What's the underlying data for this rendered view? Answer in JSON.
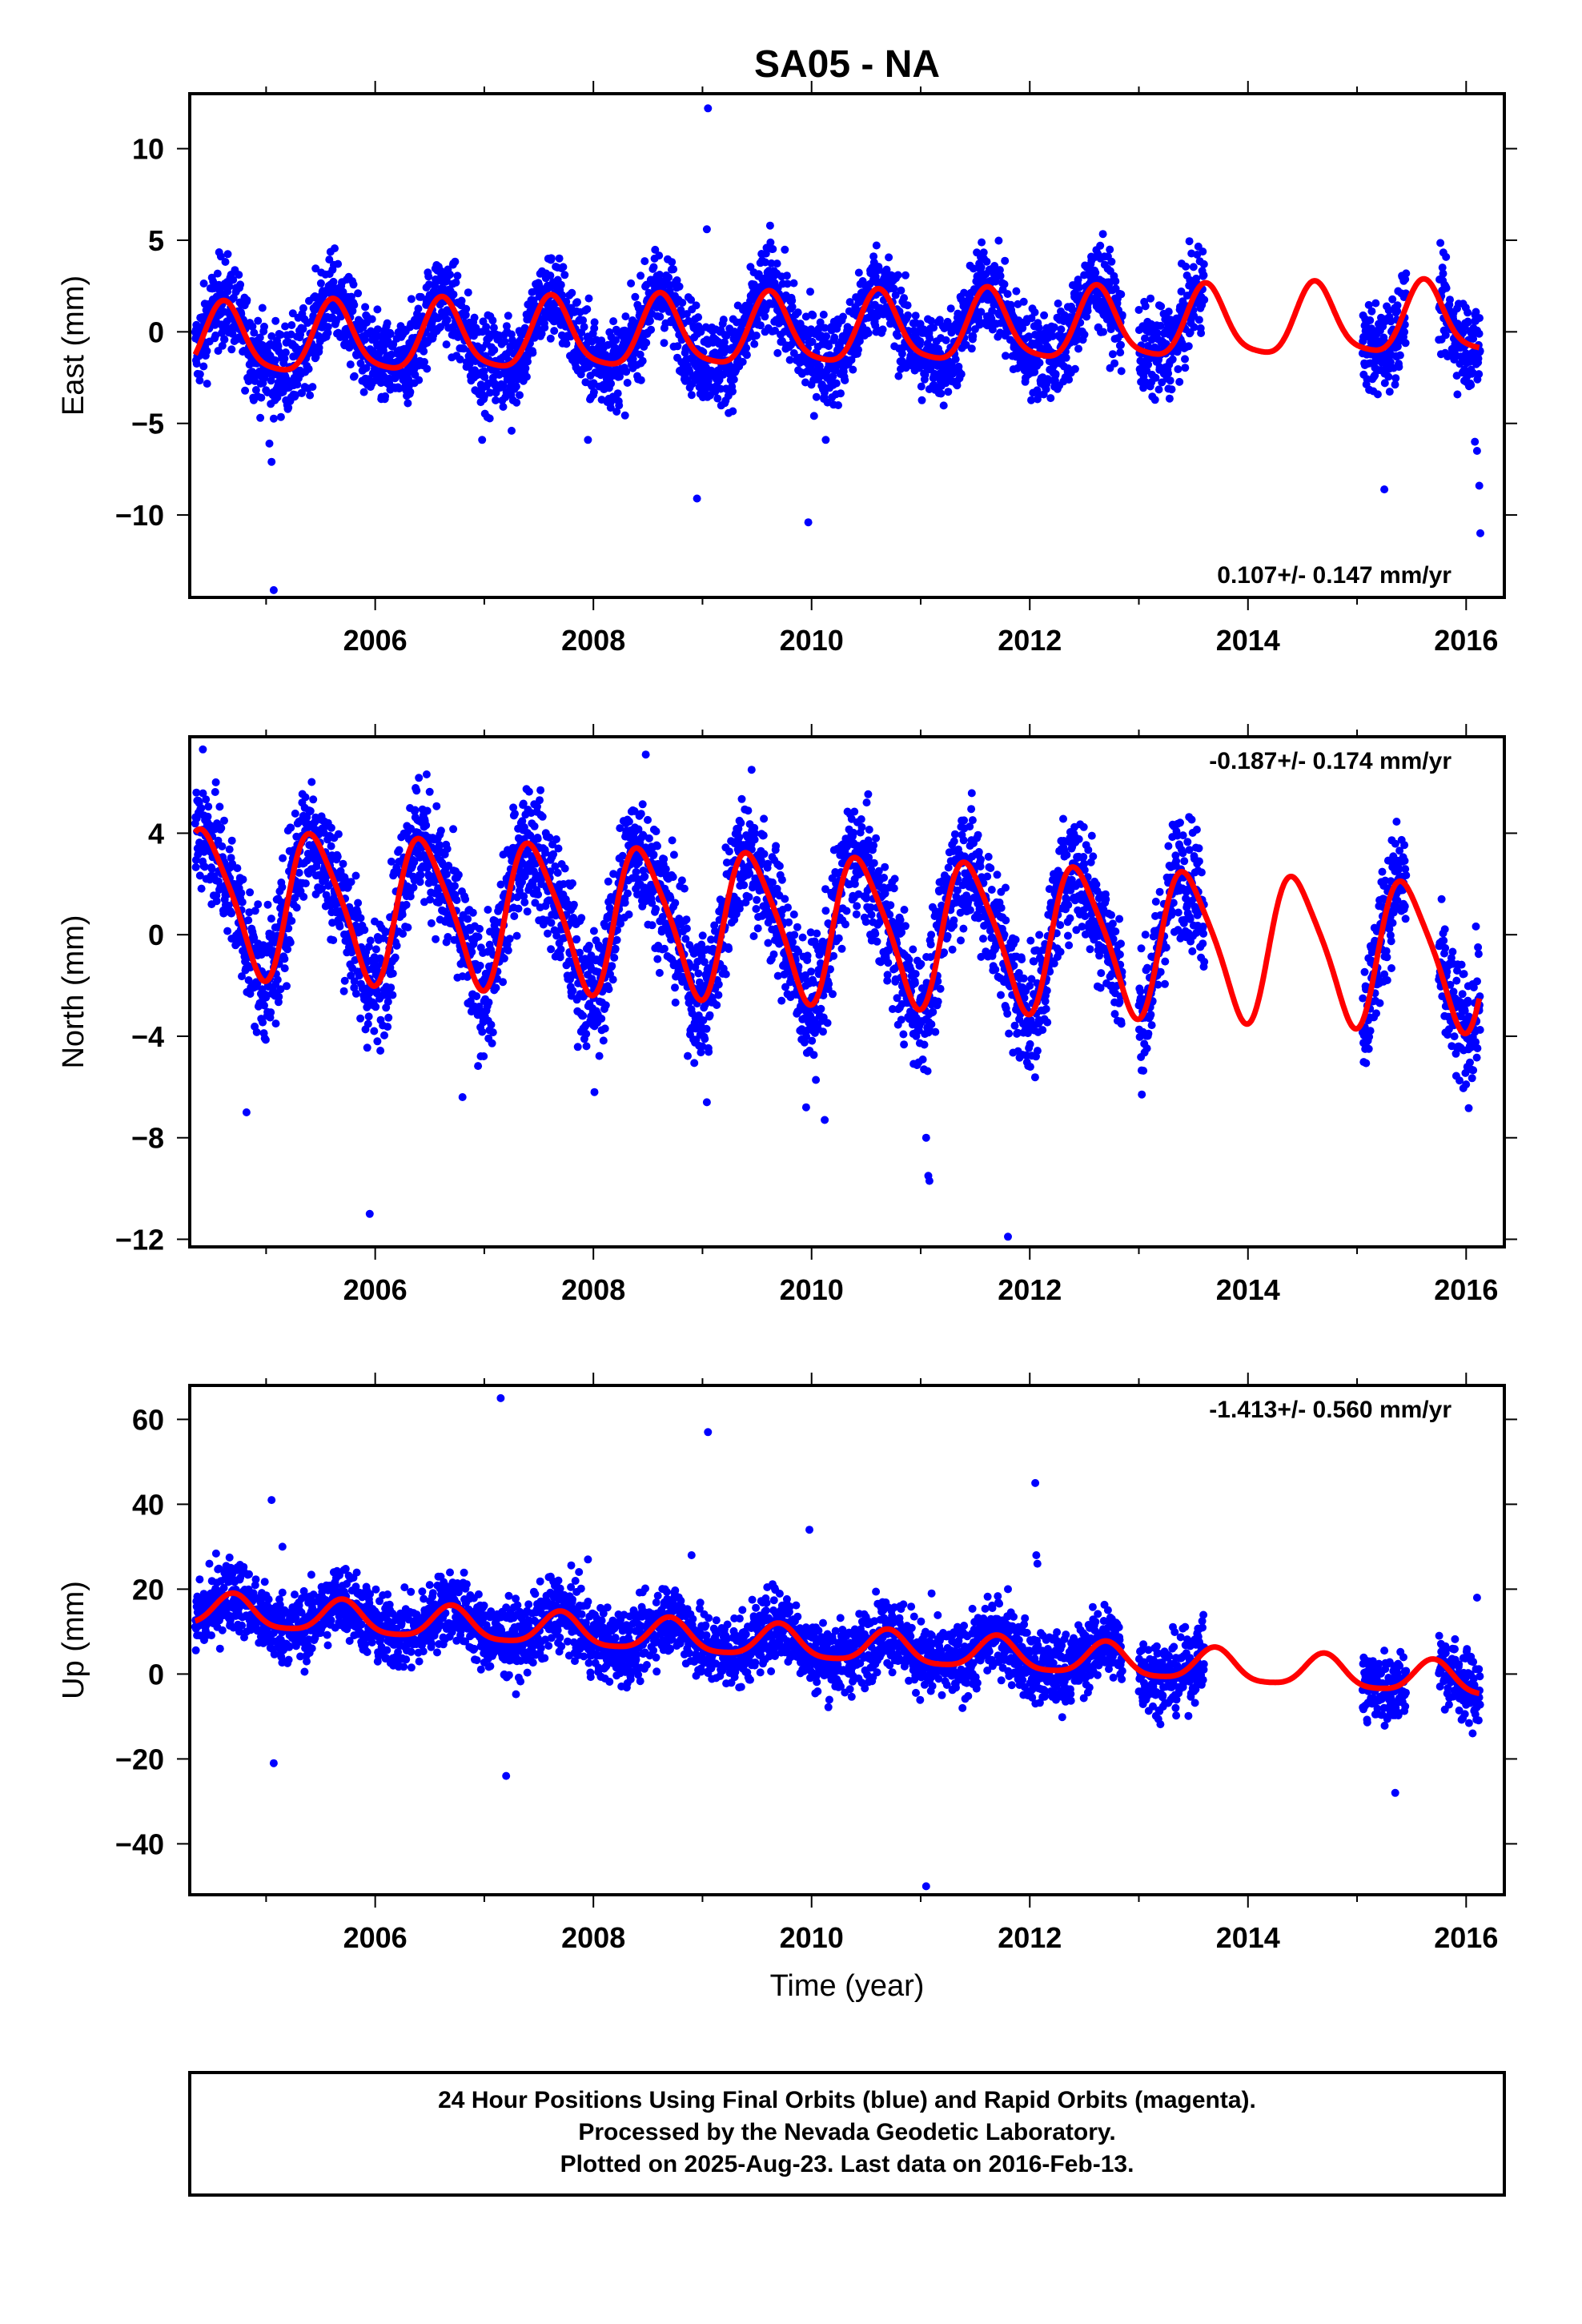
{
  "chart_data": {
    "title": "SA05 - NA",
    "xlabel": "Time (year)",
    "x_ticks": [
      2006,
      2008,
      2010,
      2012,
      2014,
      2016
    ],
    "xlim": [
      2004.3,
      2016.35
    ],
    "colors": {
      "points": "#0000ff",
      "fit": "#ff0000",
      "frame": "#000000"
    },
    "panels": [
      {
        "name": "east",
        "type": "scatter",
        "ylabel": "East (mm)",
        "rate_label": "0.107+/- 0.147 mm/yr",
        "rate_position": "bottom-right",
        "ylim": [
          -14.5,
          13
        ],
        "y_ticks": [
          10,
          5,
          0,
          -5,
          -10
        ],
        "y_tick_labels": [
          "10",
          "5",
          "0",
          "−5",
          "−10"
        ],
        "fit": {
          "trend_mm_per_yr": 0.107,
          "offset": 0.0,
          "annual_amp": 1.9,
          "annual_peak": 0.62,
          "semi_amp": 0.4,
          "semi_peak": 0.1
        },
        "noise_sd": 1.2,
        "outliers": [
          [
            2005.07,
            -14.1
          ],
          [
            2005.05,
            -7.1
          ],
          [
            2005.03,
            -6.1
          ],
          [
            2006.98,
            -5.9
          ],
          [
            2007.25,
            -5.4
          ],
          [
            2007.95,
            -5.9
          ],
          [
            2008.95,
            -9.1
          ],
          [
            2009.05,
            12.2
          ],
          [
            2009.04,
            5.6
          ],
          [
            2009.62,
            5.8
          ],
          [
            2009.97,
            -10.4
          ],
          [
            2010.13,
            -5.9
          ],
          [
            2015.25,
            -8.6
          ],
          [
            2016.08,
            -6.0
          ],
          [
            2016.1,
            -6.5
          ],
          [
            2016.12,
            -8.4
          ],
          [
            2016.13,
            -11.0
          ]
        ]
      },
      {
        "name": "north",
        "type": "scatter",
        "ylabel": "North (mm)",
        "rate_label": "-0.187+/- 0.174 mm/yr",
        "rate_position": "top-right",
        "ylim": [
          -12.3,
          7.8
        ],
        "y_ticks": [
          4,
          0,
          -4,
          -8,
          -12
        ],
        "y_tick_labels": [
          "4",
          "0",
          "−4",
          "−8",
          "−12"
        ],
        "fit": {
          "trend_mm_per_yr": -0.187,
          "offset": 0.3,
          "annual_amp": 2.8,
          "annual_peak": 0.45,
          "semi_amp": 0.5,
          "semi_peak": 0.3
        },
        "noise_sd": 1.2,
        "outliers": [
          [
            2004.82,
            -7.0
          ],
          [
            2005.95,
            -11.0
          ],
          [
            2006.8,
            -6.4
          ],
          [
            2008.01,
            -6.2
          ],
          [
            2009.04,
            -6.6
          ],
          [
            2009.95,
            -6.8
          ],
          [
            2010.12,
            -7.3
          ],
          [
            2011.05,
            -8.0
          ],
          [
            2011.07,
            -9.5
          ],
          [
            2011.08,
            -9.7
          ],
          [
            2011.8,
            -11.9
          ],
          [
            2004.42,
            7.3
          ],
          [
            2008.48,
            7.1
          ],
          [
            2009.45,
            6.5
          ]
        ]
      },
      {
        "name": "up",
        "type": "scatter",
        "ylabel": "Up (mm)",
        "rate_label": "-1.413+/- 0.560 mm/yr",
        "rate_position": "top-right",
        "ylim": [
          -52,
          68
        ],
        "y_ticks": [
          60,
          40,
          20,
          0,
          -20,
          -40
        ],
        "y_tick_labels": [
          "60",
          "40",
          "20",
          "0",
          "−20",
          "−40"
        ],
        "fit": {
          "trend_mm_per_yr": -1.413,
          "offset": 7.0,
          "annual_amp": 3.8,
          "annual_peak": 0.7,
          "semi_amp": 0.8,
          "semi_peak": 0.2
        },
        "noise_sd": 4.2,
        "outliers": [
          [
            2004.48,
            26.0
          ],
          [
            2005.05,
            41.0
          ],
          [
            2005.07,
            -21.0
          ],
          [
            2005.15,
            30.0
          ],
          [
            2007.15,
            65.0
          ],
          [
            2007.2,
            -24.0
          ],
          [
            2007.95,
            27.0
          ],
          [
            2008.9,
            28.0
          ],
          [
            2009.05,
            57.0
          ],
          [
            2009.98,
            34.0
          ],
          [
            2011.05,
            -50.0
          ],
          [
            2011.1,
            19.0
          ],
          [
            2011.8,
            20.0
          ],
          [
            2012.05,
            45.0
          ],
          [
            2012.06,
            28.0
          ],
          [
            2012.07,
            26.0
          ],
          [
            2015.35,
            -28.0
          ],
          [
            2016.1,
            18.0
          ]
        ]
      }
    ],
    "data_segments": [
      [
        2004.35,
        2012.85
      ],
      [
        2013.0,
        2013.6
      ],
      [
        2015.05,
        2015.45
      ],
      [
        2015.75,
        2016.13
      ]
    ],
    "fit_range": [
      2004.35,
      2016.12
    ]
  },
  "footer": {
    "line1": "24 Hour Positions Using Final Orbits (blue) and Rapid Orbits (magenta).",
    "line2": "Processed by the Nevada Geodetic Laboratory.",
    "line3": "Plotted on 2025-Aug-23. Last data on 2016-Feb-13."
  }
}
